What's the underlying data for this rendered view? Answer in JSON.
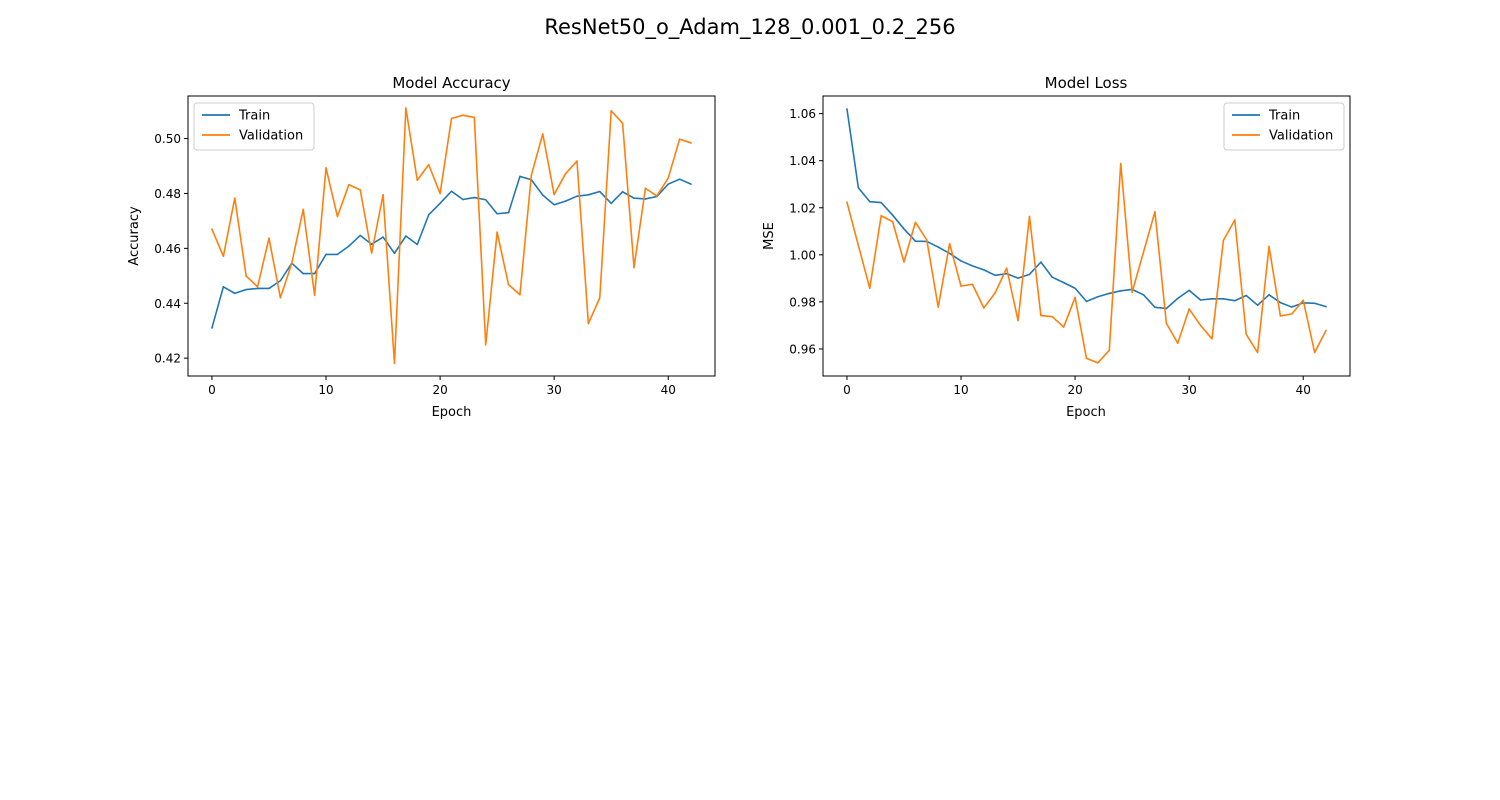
{
  "figure": {
    "suptitle": "ResNet50_o_Adam_128_0.001_0.2_256"
  },
  "colors": {
    "train": "#1f77b4",
    "validation": "#ff7f0e",
    "axes": "#000000",
    "legend_border": "#cccccc"
  },
  "chart_data": [
    {
      "type": "line",
      "title": "Model Accuracy",
      "xlabel": "Epoch",
      "ylabel": "Accuracy",
      "xlim": [
        -2.1,
        44.1
      ],
      "ylim": [
        0.4135,
        0.5155
      ],
      "xticks": [
        0,
        10,
        20,
        30,
        40
      ],
      "yticks": [
        0.42,
        0.44,
        0.46,
        0.48,
        0.5
      ],
      "ytick_labels": [
        "0.42",
        "0.44",
        "0.46",
        "0.48",
        "0.50"
      ],
      "grid": false,
      "legend": "upper-left",
      "x": [
        0,
        1,
        2,
        3,
        4,
        5,
        6,
        7,
        8,
        9,
        10,
        11,
        12,
        13,
        14,
        15,
        16,
        17,
        18,
        19,
        20,
        21,
        22,
        23,
        24,
        25,
        26,
        27,
        28,
        29,
        30,
        31,
        32,
        33,
        34,
        35,
        36,
        37,
        38,
        39,
        40,
        41,
        42
      ],
      "series": [
        {
          "name": "Train",
          "color_key": "train",
          "values": [
            0.431,
            0.446,
            0.4436,
            0.445,
            0.4454,
            0.4454,
            0.4482,
            0.4546,
            0.4508,
            0.4508,
            0.4578,
            0.4578,
            0.4608,
            0.4647,
            0.4615,
            0.4641,
            0.4582,
            0.4645,
            0.4614,
            0.4722,
            0.4764,
            0.4808,
            0.4778,
            0.4785,
            0.4777,
            0.4726,
            0.473,
            0.4862,
            0.485,
            0.4794,
            0.4759,
            0.4772,
            0.479,
            0.4795,
            0.4807,
            0.4764,
            0.4806,
            0.4783,
            0.478,
            0.4789,
            0.4834,
            0.4852,
            0.4834
          ]
        },
        {
          "name": "Validation",
          "color_key": "validation",
          "values": [
            0.467,
            0.4571,
            0.4783,
            0.4499,
            0.446,
            0.4637,
            0.442,
            0.4546,
            0.4742,
            0.4429,
            0.4893,
            0.4716,
            0.4832,
            0.4813,
            0.4583,
            0.4795,
            0.4181,
            0.5111,
            0.4848,
            0.4905,
            0.48,
            0.5073,
            0.5085,
            0.5077,
            0.4249,
            0.4659,
            0.4468,
            0.4431,
            0.4866,
            0.5017,
            0.4796,
            0.4872,
            0.4918,
            0.4326,
            0.442,
            0.5101,
            0.5056,
            0.453,
            0.4819,
            0.4791,
            0.4856,
            0.4998,
            0.4984
          ]
        }
      ]
    },
    {
      "type": "line",
      "title": "Model Loss",
      "xlabel": "Epoch",
      "ylabel": "MSE",
      "xlim": [
        -2.1,
        44.1
      ],
      "ylim": [
        0.9485,
        1.0675
      ],
      "xticks": [
        0,
        10,
        20,
        30,
        40
      ],
      "yticks": [
        0.96,
        0.98,
        1.0,
        1.02,
        1.04,
        1.06
      ],
      "ytick_labels": [
        "0.96",
        "0.98",
        "1.00",
        "1.02",
        "1.04",
        "1.06"
      ],
      "grid": false,
      "legend": "upper-right",
      "x": [
        0,
        1,
        2,
        3,
        4,
        5,
        6,
        7,
        8,
        9,
        10,
        11,
        12,
        13,
        14,
        15,
        16,
        17,
        18,
        19,
        20,
        21,
        22,
        23,
        24,
        25,
        26,
        27,
        28,
        29,
        30,
        31,
        32,
        33,
        34,
        35,
        36,
        37,
        38,
        39,
        40,
        41,
        42
      ],
      "series": [
        {
          "name": "Train",
          "color_key": "train",
          "values": [
            1.062,
            1.0285,
            1.0226,
            1.0222,
            1.0169,
            1.011,
            1.0058,
            1.0057,
            1.0033,
            1.0006,
            0.9974,
            0.9953,
            0.9936,
            0.9913,
            0.992,
            0.9901,
            0.9917,
            0.9969,
            0.9905,
            0.9882,
            0.9858,
            0.9802,
            0.9822,
            0.9836,
            0.9847,
            0.9853,
            0.983,
            0.9777,
            0.9772,
            0.9815,
            0.9849,
            0.9808,
            0.9813,
            0.9813,
            0.9805,
            0.9827,
            0.9786,
            0.983,
            0.9797,
            0.9778,
            0.9796,
            0.9794,
            0.978
          ]
        },
        {
          "name": "Validation",
          "color_key": "validation",
          "values": [
            1.0224,
            1.004,
            0.9858,
            1.0166,
            1.0141,
            0.997,
            1.0138,
            1.0063,
            0.9778,
            1.0047,
            0.9867,
            0.9875,
            0.9774,
            0.9839,
            0.9943,
            0.9721,
            1.0163,
            0.9742,
            0.9737,
            0.9693,
            0.9819,
            0.956,
            0.9541,
            0.9594,
            1.0388,
            0.9841,
            1.0012,
            1.0183,
            0.9709,
            0.9624,
            0.977,
            0.97,
            0.9643,
            1.0061,
            1.0148,
            0.9662,
            0.9585,
            1.0035,
            0.974,
            0.9749,
            0.9807,
            0.9585,
            0.9679
          ]
        }
      ]
    }
  ]
}
